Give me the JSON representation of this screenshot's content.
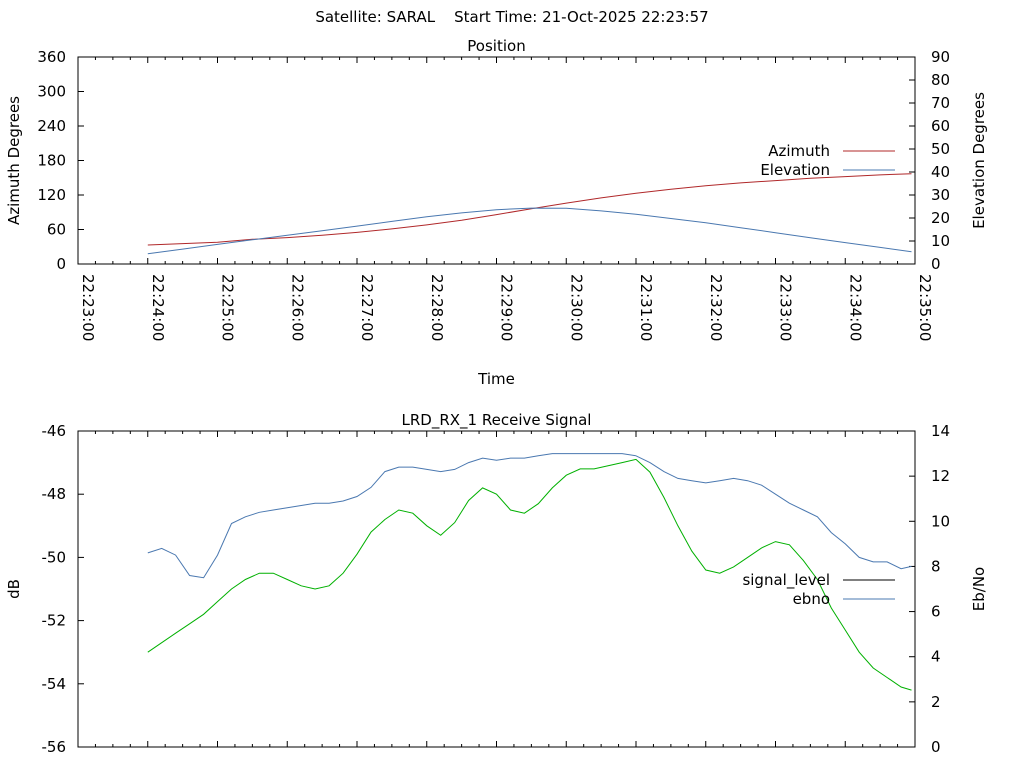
{
  "header": {
    "satellite_label": "Satellite: SARAL",
    "start_time_label": "Start Time: 21-Oct-2025 22:23:57"
  },
  "chart_data": [
    {
      "type": "line",
      "title": "Position",
      "xlabel": "Time",
      "ylabel": "Azimuth Degrees",
      "y2label": "Elevation Degrees",
      "xticks": [
        "22:23:00",
        "22:24:00",
        "22:25:00",
        "22:26:00",
        "22:27:00",
        "22:28:00",
        "22:29:00",
        "22:30:00",
        "22:31:00",
        "22:32:00",
        "22:33:00",
        "22:34:00",
        "22:35:00"
      ],
      "xlim_minutes": [
        0,
        12
      ],
      "ylim": [
        0,
        360
      ],
      "yticks": [
        0,
        60,
        120,
        180,
        240,
        300,
        360
      ],
      "y2lim": [
        0,
        90
      ],
      "y2ticks": [
        0,
        10,
        20,
        30,
        40,
        50,
        60,
        70,
        80,
        90
      ],
      "legend_position": "right",
      "series": [
        {
          "name": "Azimuth",
          "axis": "y",
          "color": "#b0282a",
          "x": [
            "22:24:00",
            "22:25:00",
            "22:25:30",
            "22:26:00",
            "22:26:30",
            "22:27:00",
            "22:27:30",
            "22:28:00",
            "22:28:30",
            "22:29:00",
            "22:29:30",
            "22:30:00",
            "22:30:30",
            "22:31:00",
            "22:31:30",
            "22:32:00",
            "22:32:30",
            "22:33:00",
            "22:33:30",
            "22:34:00",
            "22:34:30",
            "22:34:57"
          ],
          "values": [
            33,
            38,
            43,
            46,
            50,
            55,
            61,
            68,
            76,
            86,
            96,
            106,
            115,
            123,
            130,
            136,
            141,
            145,
            149,
            152,
            155,
            157
          ]
        },
        {
          "name": "Elevation",
          "axis": "y2",
          "color": "#4a78b0",
          "x": [
            "22:24:00",
            "22:24:30",
            "22:25:00",
            "22:25:30",
            "22:26:00",
            "22:26:30",
            "22:27:00",
            "22:27:30",
            "22:28:00",
            "22:28:30",
            "22:29:00",
            "22:29:30",
            "22:30:00",
            "22:30:30",
            "22:31:00",
            "22:31:30",
            "22:32:00",
            "22:32:30",
            "22:33:00",
            "22:33:30",
            "22:34:00",
            "22:34:30",
            "22:34:57"
          ],
          "values": [
            4.5,
            6.5,
            8.5,
            10.5,
            12.5,
            14.5,
            16.5,
            18.5,
            20.5,
            22.2,
            23.6,
            24.3,
            24.2,
            23.1,
            21.6,
            19.8,
            17.9,
            15.8,
            13.6,
            11.4,
            9.3,
            7.2,
            5.3
          ]
        }
      ]
    },
    {
      "type": "line",
      "title": "LRD_RX_1 Receive Signal",
      "ylabel": "dB",
      "y2label": "Eb/No",
      "xlim_minutes": [
        0,
        12
      ],
      "ylim": [
        -56,
        -46
      ],
      "yticks": [
        -56,
        -54,
        -52,
        -50,
        -48,
        -46
      ],
      "y2lim": [
        0,
        14
      ],
      "y2ticks": [
        0,
        2,
        4,
        6,
        8,
        10,
        12,
        14
      ],
      "legend_position": "right",
      "series": [
        {
          "name": "signal_level",
          "axis": "y",
          "color": "#00b000",
          "x_minutes": [
            1.0,
            1.2,
            1.4,
            1.6,
            1.8,
            2.0,
            2.2,
            2.4,
            2.6,
            2.8,
            3.0,
            3.2,
            3.4,
            3.6,
            3.8,
            4.0,
            4.2,
            4.4,
            4.6,
            4.8,
            5.0,
            5.2,
            5.4,
            5.6,
            5.8,
            6.0,
            6.2,
            6.4,
            6.6,
            6.8,
            7.0,
            7.2,
            7.4,
            7.6,
            7.8,
            8.0,
            8.2,
            8.4,
            8.6,
            8.8,
            9.0,
            9.2,
            9.4,
            9.6,
            9.8,
            10.0,
            10.2,
            10.4,
            10.6,
            10.8,
            11.0,
            11.2,
            11.4,
            11.6,
            11.8,
            11.95
          ],
          "values": [
            -53.0,
            -52.7,
            -52.4,
            -52.1,
            -51.8,
            -51.4,
            -51.0,
            -50.7,
            -50.5,
            -50.5,
            -50.7,
            -50.9,
            -51.0,
            -50.9,
            -50.5,
            -49.9,
            -49.2,
            -48.8,
            -48.5,
            -48.6,
            -49.0,
            -49.3,
            -48.9,
            -48.2,
            -47.8,
            -48.0,
            -48.5,
            -48.6,
            -48.3,
            -47.8,
            -47.4,
            -47.2,
            -47.2,
            -47.1,
            -47.0,
            -46.9,
            -47.3,
            -48.1,
            -49.0,
            -49.8,
            -50.4,
            -50.5,
            -50.3,
            -50.0,
            -49.7,
            -49.5,
            -49.6,
            -50.1,
            -50.7,
            -51.6,
            -52.3,
            -53.0,
            -53.5,
            -53.8,
            -54.1,
            -54.2
          ]
        },
        {
          "name": "ebno",
          "axis": "y2",
          "color": "#4a78b0",
          "x_minutes": [
            1.0,
            1.2,
            1.4,
            1.6,
            1.8,
            2.0,
            2.2,
            2.4,
            2.6,
            2.8,
            3.0,
            3.2,
            3.4,
            3.6,
            3.8,
            4.0,
            4.2,
            4.4,
            4.6,
            4.8,
            5.0,
            5.2,
            5.4,
            5.6,
            5.8,
            6.0,
            6.2,
            6.4,
            6.6,
            6.8,
            7.0,
            7.2,
            7.4,
            7.6,
            7.8,
            8.0,
            8.2,
            8.4,
            8.6,
            8.8,
            9.0,
            9.2,
            9.4,
            9.6,
            9.8,
            10.0,
            10.2,
            10.4,
            10.6,
            10.8,
            11.0,
            11.2,
            11.4,
            11.6,
            11.8,
            11.95
          ],
          "values": [
            8.6,
            8.8,
            8.5,
            7.6,
            7.5,
            8.5,
            9.9,
            10.2,
            10.4,
            10.5,
            10.6,
            10.7,
            10.8,
            10.8,
            10.9,
            11.1,
            11.5,
            12.2,
            12.4,
            12.4,
            12.3,
            12.2,
            12.3,
            12.6,
            12.8,
            12.7,
            12.8,
            12.8,
            12.9,
            13.0,
            13.0,
            13.0,
            13.0,
            13.0,
            13.0,
            12.9,
            12.6,
            12.2,
            11.9,
            11.8,
            11.7,
            11.8,
            11.9,
            11.8,
            11.6,
            11.2,
            10.8,
            10.5,
            10.2,
            9.5,
            9.0,
            8.4,
            8.2,
            8.2,
            7.9,
            8.0
          ]
        }
      ]
    }
  ]
}
